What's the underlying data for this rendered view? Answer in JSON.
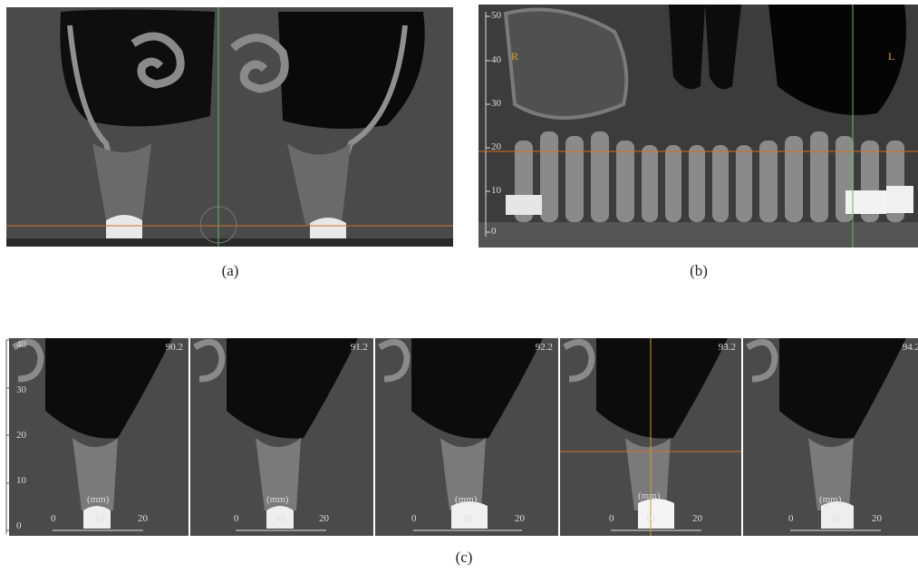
{
  "captions": {
    "a": "(a)",
    "b": "(b)",
    "c": "(c)"
  },
  "panel_b": {
    "side_left": "R",
    "side_right": "L",
    "scale_ticks": [
      "50",
      "40",
      "30",
      "20",
      "10",
      "0"
    ]
  },
  "panel_c": {
    "scale_ticks": [
      "40",
      "30",
      "20",
      "10",
      "0"
    ],
    "slices": [
      {
        "slice_label": "90.2",
        "unit": "(mm)",
        "ruler": [
          "0",
          "10",
          "20"
        ]
      },
      {
        "slice_label": "91.2",
        "unit": "(mm)",
        "ruler": [
          "0",
          "10",
          "20"
        ]
      },
      {
        "slice_label": "92.2",
        "unit": "(mm)",
        "ruler": [
          "0",
          "10",
          "20"
        ]
      },
      {
        "slice_label": "93.2",
        "unit": "(mm)",
        "ruler": [
          "0",
          "10",
          "20"
        ]
      },
      {
        "slice_label": "94.2",
        "unit": "(mm)",
        "ruler": [
          "0",
          "10",
          "20"
        ]
      }
    ]
  },
  "colors": {
    "crosshair_vertical": "#5fbf5f",
    "crosshair_horizontal": "#d0702a",
    "label_orange": "#e0a020"
  }
}
